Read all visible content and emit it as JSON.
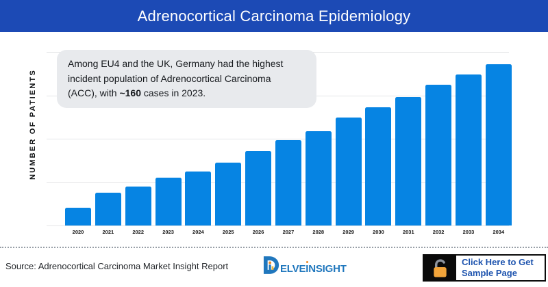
{
  "header": {
    "title": "Adrenocortical Carcinoma Epidemiology"
  },
  "annotation": {
    "line1": "Among EU4 and the UK, Germany had the highest",
    "line2": "incident population of Adrenocortical Carcinoma",
    "line3_before": "(ACC), with ",
    "line3_bold": "~160",
    "line3_after": " cases in 2023."
  },
  "chart_data": {
    "type": "bar",
    "title": "",
    "xlabel": "",
    "ylabel": "NUMBER OF PATIENTS",
    "categories": [
      "2020",
      "2021",
      "2022",
      "2023",
      "2024",
      "2025",
      "2026",
      "2027",
      "2028",
      "2029",
      "2030",
      "2031",
      "2032",
      "2033",
      "2034"
    ],
    "values": [
      60,
      110,
      130,
      160,
      180,
      210,
      250,
      285,
      315,
      360,
      395,
      430,
      470,
      505,
      540
    ],
    "ylim": [
      0,
      580
    ],
    "grid": true,
    "gridline_count": 5,
    "y_tick_labels_visible": false,
    "legend": "none",
    "bar_color": "#0684e3"
  },
  "footer": {
    "source": "Source: Adrenocortical Carcinoma Market Insight Report",
    "logo": {
      "text": "DELVEINSIGHT",
      "part1": "ELVE",
      "i": "I",
      "part2": "NSIGHT"
    },
    "cta": {
      "label": "Click Here to Get Sample Page"
    }
  },
  "colors": {
    "header_bg": "#1c4ab5",
    "bar": "#0684e3",
    "gridline": "#e4e5e7",
    "annotation_bg": "#e8eaed",
    "logo_blue": "#2077bd",
    "accent_orange": "#f08a24",
    "lock_orange": "#f2a43a",
    "cta_text": "#1d53ae"
  }
}
